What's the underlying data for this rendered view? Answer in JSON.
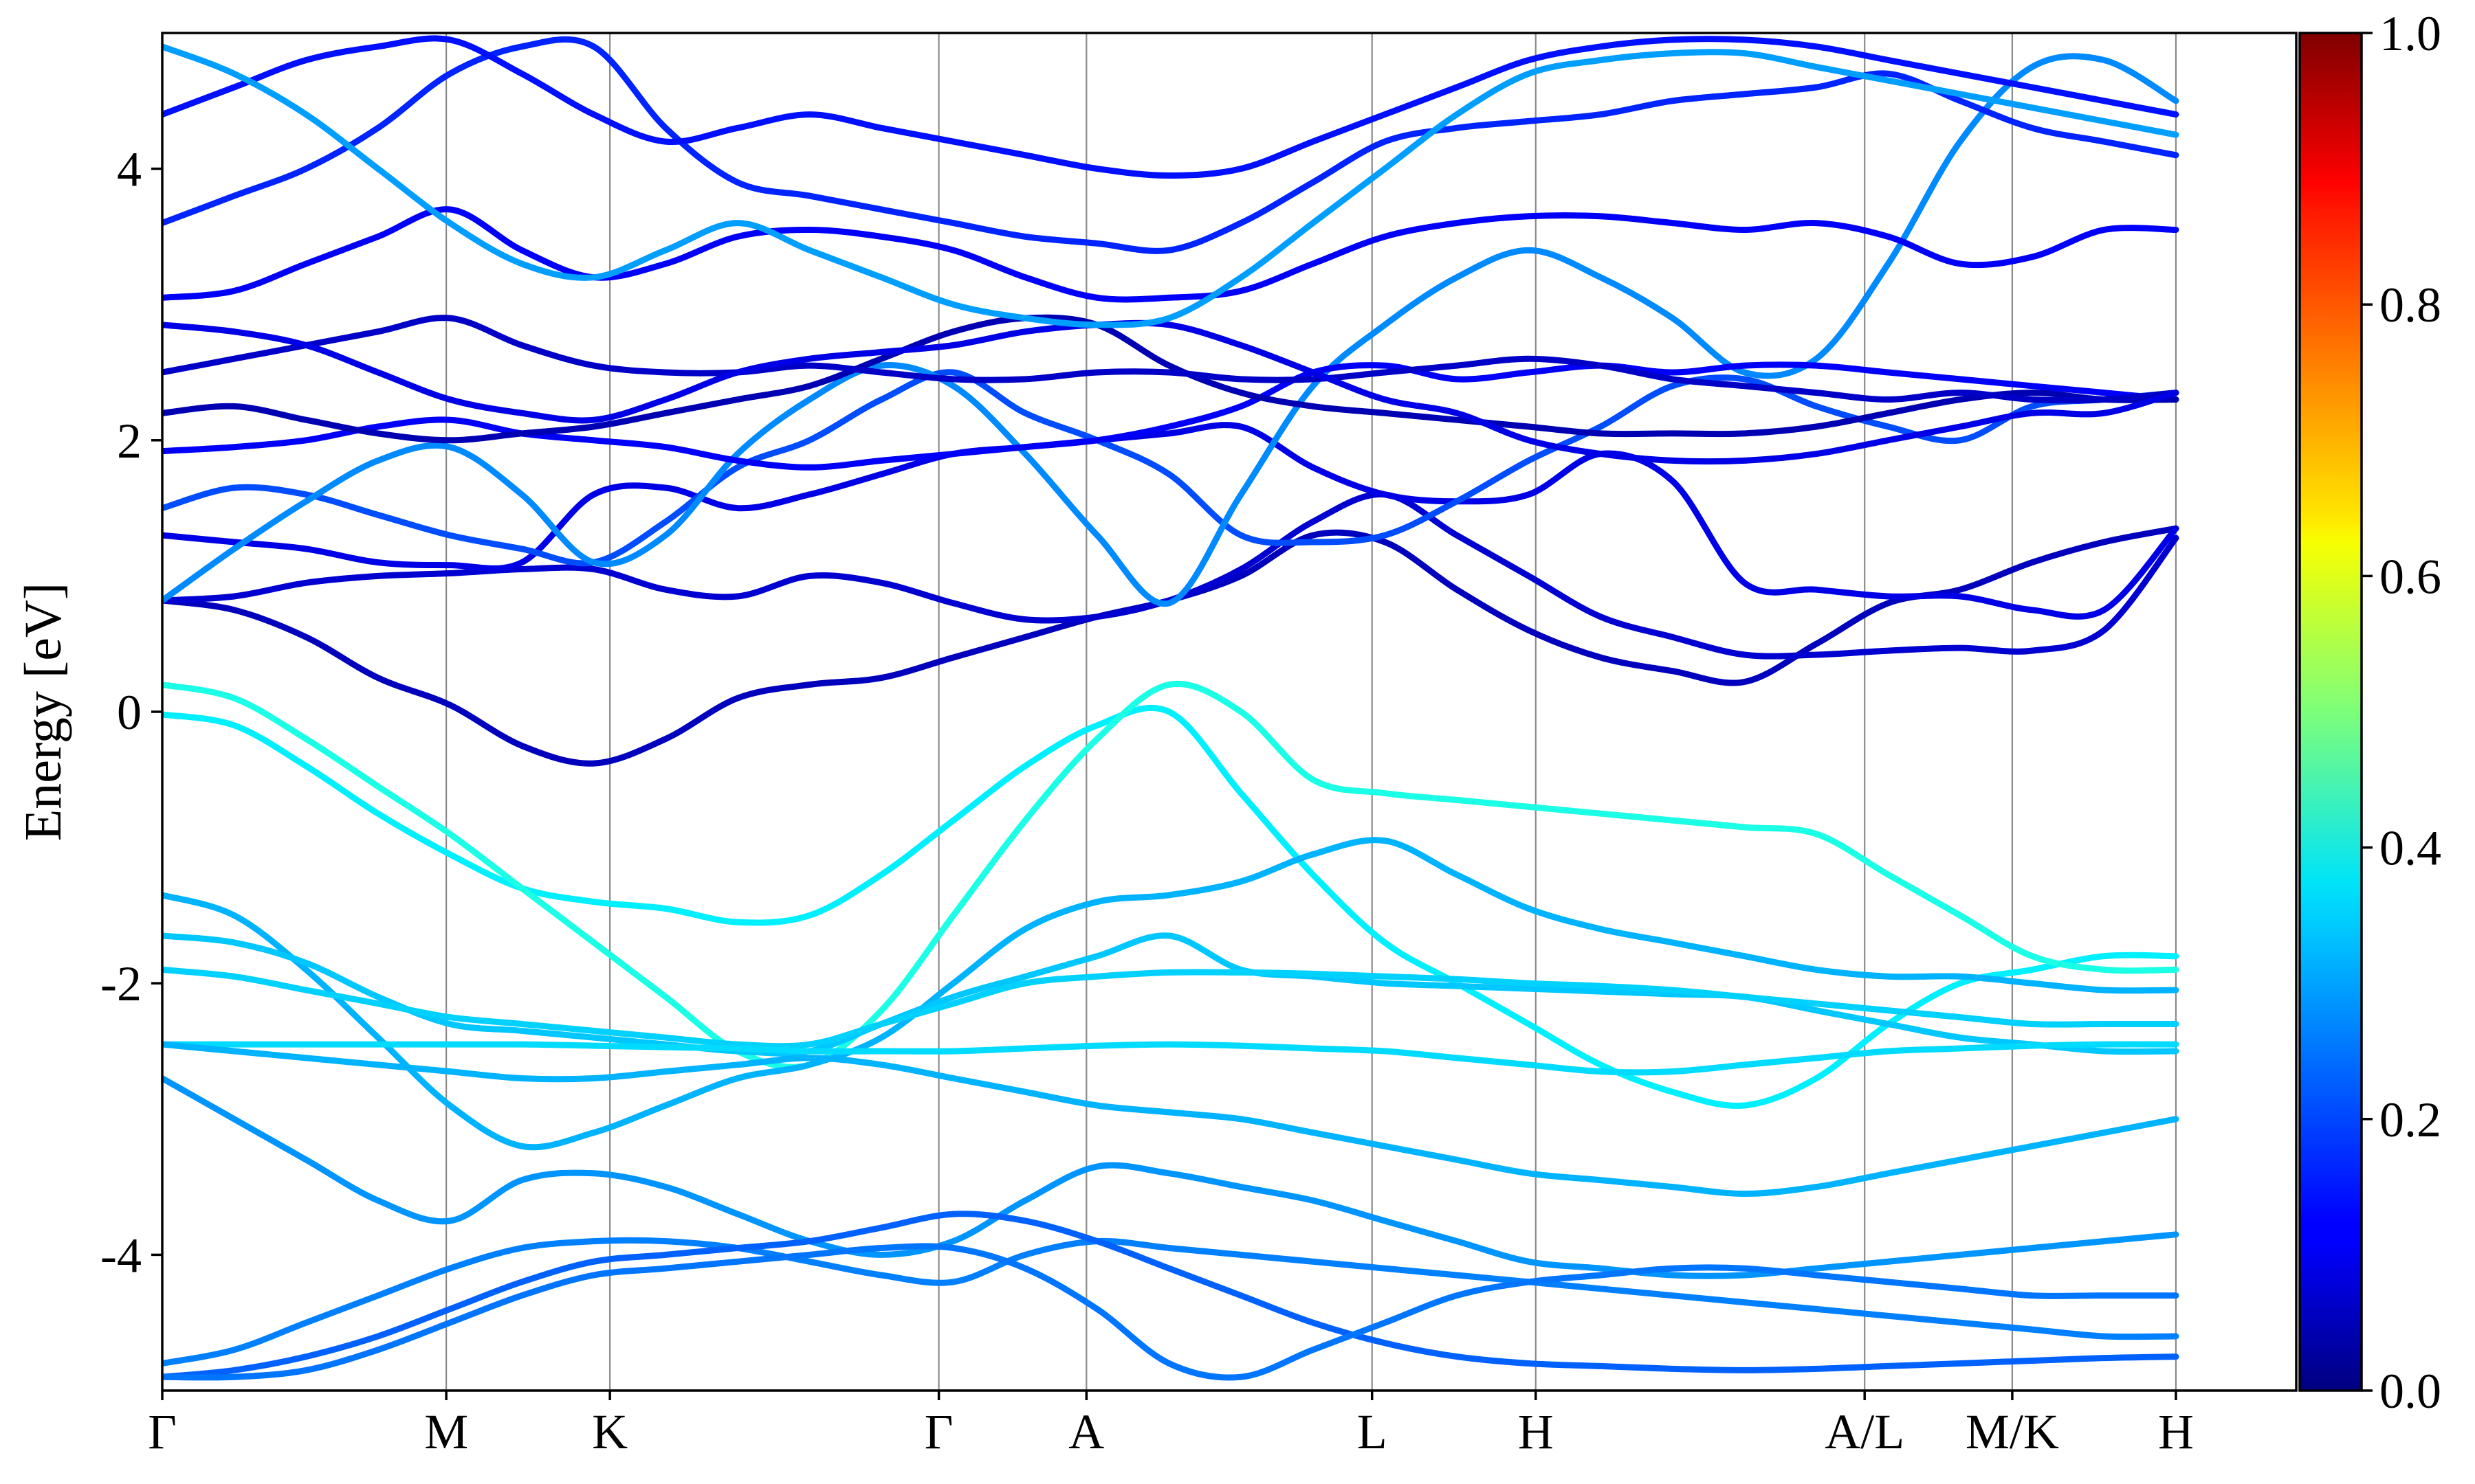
{
  "chart_data": {
    "type": "line",
    "title": "",
    "xlabel": "",
    "ylabel": "Energy [eV]",
    "ylim": [
      -5,
      5
    ],
    "y_ticks": [
      -4,
      -2,
      0,
      2,
      4
    ],
    "y_tick_labels": [
      "-4",
      "-2",
      "0",
      "2",
      "4"
    ],
    "grid": false,
    "legend": "none",
    "k_path": {
      "x_range": [
        0,
        13.3
      ],
      "points": [
        {
          "label": "Γ",
          "x": 0
        },
        {
          "label": "M",
          "x": 1.77
        },
        {
          "label": "K",
          "x": 2.79
        },
        {
          "label": "Γ",
          "x": 4.84
        },
        {
          "label": "A",
          "x": 5.76
        },
        {
          "label": "L",
          "x": 7.54
        },
        {
          "label": "H",
          "x": 8.56
        },
        {
          "label": "A/L",
          "x": 10.61
        },
        {
          "label": "M/K",
          "x": 11.53
        },
        {
          "label": "H",
          "x": 12.55
        }
      ]
    },
    "colorbar": {
      "colormap": "jet",
      "range": [
        0.0,
        1.0
      ],
      "ticks": [
        0.0,
        0.2,
        0.4,
        0.6,
        0.8,
        1.0
      ],
      "tick_labels": [
        "0.0",
        "0.2",
        "0.4",
        "0.6",
        "0.8",
        "1.0"
      ]
    },
    "series": [
      {
        "weight": 0.06,
        "values": [
          0.82,
          0.75,
          0.55,
          0.25,
          0.05,
          -0.25,
          -0.38,
          -0.2,
          0.1,
          0.2,
          0.25,
          0.4,
          0.55,
          0.7,
          0.82,
          1.0,
          1.3,
          1.25,
          0.9,
          0.6,
          0.4,
          0.3,
          0.22,
          0.5,
          0.8,
          0.9,
          1.1,
          1.25,
          1.35
        ]
      },
      {
        "weight": 0.08,
        "values": [
          0.82,
          0.85,
          0.95,
          1.0,
          1.02,
          1.05,
          1.05,
          0.9,
          0.85,
          1.0,
          0.95,
          0.8,
          0.68,
          0.7,
          0.82,
          1.05,
          1.4,
          1.6,
          1.3,
          1.0,
          0.7,
          0.55,
          0.42,
          0.42,
          0.45,
          0.47,
          0.45,
          0.6,
          1.28
        ]
      },
      {
        "weight": 0.1,
        "values": [
          1.3,
          1.25,
          1.2,
          1.1,
          1.08,
          1.1,
          1.6,
          1.65,
          1.5,
          1.6,
          1.75,
          1.9,
          1.95,
          2.0,
          2.05,
          2.1,
          1.8,
          1.6,
          1.55,
          1.6,
          1.9,
          1.7,
          0.95,
          0.9,
          0.85,
          0.85,
          0.75,
          0.75,
          1.35
        ]
      },
      {
        "weight": 0.2,
        "values": [
          1.5,
          1.65,
          1.6,
          1.45,
          1.3,
          1.2,
          1.1,
          1.4,
          1.8,
          2.0,
          2.3,
          2.5,
          2.2,
          2.0,
          1.75,
          1.3,
          1.25,
          1.3,
          1.55,
          1.85,
          2.1,
          2.4,
          2.45,
          2.25,
          2.1,
          2.0,
          2.25,
          2.3,
          2.35
        ]
      },
      {
        "weight": 0.26,
        "values": [
          0.82,
          1.2,
          1.55,
          1.85,
          1.95,
          1.6,
          1.1,
          1.3,
          1.9,
          2.3,
          2.55,
          2.4,
          1.9,
          1.3,
          0.8,
          1.6,
          2.4,
          2.85,
          3.2,
          3.4,
          3.2,
          2.9,
          2.5,
          2.6,
          3.3,
          4.2,
          4.75,
          4.8,
          4.5
        ]
      },
      {
        "weight": 0.12,
        "values": [
          1.92,
          1.95,
          2.0,
          2.1,
          2.15,
          2.05,
          2.0,
          1.95,
          1.85,
          1.8,
          1.85,
          1.9,
          1.95,
          2.0,
          2.1,
          2.25,
          2.5,
          2.55,
          2.45,
          2.5,
          2.55,
          2.5,
          2.55,
          2.55,
          2.5,
          2.45,
          2.4,
          2.35,
          2.3
        ]
      },
      {
        "weight": 0.05,
        "values": [
          2.2,
          2.25,
          2.15,
          2.05,
          2.0,
          2.05,
          2.1,
          2.2,
          2.3,
          2.4,
          2.6,
          2.8,
          2.9,
          2.85,
          2.55,
          2.35,
          2.25,
          2.2,
          2.15,
          2.1,
          2.05,
          2.05,
          2.05,
          2.1,
          2.2,
          2.3,
          2.35,
          2.3,
          2.3
        ]
      },
      {
        "weight": 0.07,
        "values": [
          2.5,
          2.6,
          2.7,
          2.8,
          2.9,
          2.7,
          2.55,
          2.5,
          2.5,
          2.55,
          2.5,
          2.45,
          2.45,
          2.5,
          2.5,
          2.45,
          2.45,
          2.5,
          2.55,
          2.6,
          2.55,
          2.45,
          2.4,
          2.35,
          2.3,
          2.35,
          2.3,
          2.3,
          2.35
        ]
      },
      {
        "weight": 0.1,
        "values": [
          2.85,
          2.8,
          2.7,
          2.5,
          2.3,
          2.2,
          2.15,
          2.3,
          2.5,
          2.6,
          2.65,
          2.7,
          2.8,
          2.85,
          2.85,
          2.7,
          2.5,
          2.3,
          2.2,
          2.0,
          1.9,
          1.85,
          1.85,
          1.9,
          2.0,
          2.1,
          2.2,
          2.2,
          2.35
        ]
      },
      {
        "weight": 0.12,
        "values": [
          3.05,
          3.1,
          3.3,
          3.5,
          3.7,
          3.4,
          3.2,
          3.3,
          3.5,
          3.55,
          3.5,
          3.4,
          3.2,
          3.05,
          3.05,
          3.1,
          3.3,
          3.5,
          3.6,
          3.65,
          3.65,
          3.6,
          3.55,
          3.6,
          3.5,
          3.3,
          3.35,
          3.55,
          3.55
        ]
      },
      {
        "weight": 0.16,
        "values": [
          3.6,
          3.8,
          4.0,
          4.3,
          4.7,
          4.9,
          4.9,
          4.3,
          3.9,
          3.8,
          3.7,
          3.6,
          3.5,
          3.45,
          3.4,
          3.6,
          3.9,
          4.2,
          4.3,
          4.35,
          4.4,
          4.5,
          4.55,
          4.6,
          4.7,
          4.5,
          4.3,
          4.2,
          4.1
        ]
      },
      {
        "weight": 0.14,
        "values": [
          4.4,
          4.6,
          4.8,
          4.9,
          4.95,
          4.7,
          4.4,
          4.2,
          4.3,
          4.4,
          4.3,
          4.2,
          4.1,
          4.0,
          3.95,
          4.0,
          4.2,
          4.4,
          4.6,
          4.8,
          4.9,
          4.95,
          4.95,
          4.9,
          4.8,
          4.7,
          4.6,
          4.5,
          4.4
        ]
      },
      {
        "weight": 0.28,
        "values": [
          4.9,
          4.7,
          4.4,
          4.0,
          3.6,
          3.3,
          3.2,
          3.4,
          3.6,
          3.4,
          3.2,
          3.0,
          2.9,
          2.85,
          2.9,
          3.2,
          3.6,
          4.0,
          4.4,
          4.7,
          4.8,
          4.85,
          4.85,
          4.75,
          4.65,
          4.55,
          4.45,
          4.35,
          4.25
        ]
      },
      {
        "weight": 0.36,
        "values": [
          -0.02,
          -0.1,
          -0.4,
          -0.75,
          -1.05,
          -1.3,
          -1.4,
          -1.45,
          -1.55,
          -1.5,
          -1.2,
          -0.8,
          -0.4,
          -0.1,
          0.0,
          -0.6,
          -1.2,
          -1.7,
          -2.0,
          -2.3,
          -2.6,
          -2.8,
          -2.9,
          -2.7,
          -2.3,
          -2.0,
          -1.9,
          -1.8,
          -1.8
        ]
      },
      {
        "weight": 0.4,
        "values": [
          0.2,
          0.1,
          -0.2,
          -0.55,
          -0.9,
          -1.3,
          -1.7,
          -2.1,
          -2.5,
          -2.6,
          -2.2,
          -1.5,
          -0.8,
          -0.2,
          0.2,
          0.0,
          -0.5,
          -0.6,
          -0.65,
          -0.7,
          -0.75,
          -0.8,
          -0.85,
          -0.9,
          -1.2,
          -1.5,
          -1.8,
          -1.9,
          -1.9
        ]
      },
      {
        "weight": 0.3,
        "values": [
          -1.35,
          -1.5,
          -1.9,
          -2.4,
          -2.9,
          -3.2,
          -3.1,
          -2.9,
          -2.7,
          -2.6,
          -2.4,
          -2.0,
          -1.6,
          -1.4,
          -1.35,
          -1.25,
          -1.05,
          -0.95,
          -1.2,
          -1.45,
          -1.6,
          -1.7,
          -1.8,
          -1.9,
          -1.95,
          -1.95,
          -2.0,
          -2.05,
          -2.05
        ]
      },
      {
        "weight": 0.32,
        "values": [
          -1.65,
          -1.7,
          -1.85,
          -2.1,
          -2.3,
          -2.35,
          -2.4,
          -2.45,
          -2.5,
          -2.5,
          -2.3,
          -2.1,
          -1.95,
          -1.8,
          -1.65,
          -1.9,
          -1.95,
          -2.0,
          -2.02,
          -2.04,
          -2.06,
          -2.08,
          -2.1,
          -2.2,
          -2.3,
          -2.4,
          -2.45,
          -2.5,
          -2.5
        ]
      },
      {
        "weight": 0.33,
        "values": [
          -1.9,
          -1.95,
          -2.05,
          -2.15,
          -2.25,
          -2.3,
          -2.35,
          -2.4,
          -2.45,
          -2.45,
          -2.3,
          -2.15,
          -2.0,
          -1.95,
          -1.92,
          -1.92,
          -1.93,
          -1.95,
          -1.97,
          -2.0,
          -2.02,
          -2.05,
          -2.1,
          -2.15,
          -2.2,
          -2.25,
          -2.3,
          -2.3,
          -2.3
        ]
      },
      {
        "weight": 0.34,
        "values": [
          -2.45,
          -2.45,
          -2.45,
          -2.45,
          -2.45,
          -2.45,
          -2.46,
          -2.47,
          -2.48,
          -2.5,
          -2.5,
          -2.5,
          -2.48,
          -2.46,
          -2.45,
          -2.46,
          -2.48,
          -2.5,
          -2.55,
          -2.6,
          -2.65,
          -2.65,
          -2.6,
          -2.55,
          -2.5,
          -2.48,
          -2.46,
          -2.45,
          -2.45
        ]
      },
      {
        "weight": 0.3,
        "values": [
          -2.45,
          -2.5,
          -2.55,
          -2.6,
          -2.65,
          -2.7,
          -2.7,
          -2.65,
          -2.6,
          -2.55,
          -2.6,
          -2.7,
          -2.8,
          -2.9,
          -2.95,
          -3.0,
          -3.1,
          -3.2,
          -3.3,
          -3.4,
          -3.45,
          -3.5,
          -3.55,
          -3.5,
          -3.4,
          -3.3,
          -3.2,
          -3.1,
          -3.0
        ]
      },
      {
        "weight": 0.27,
        "values": [
          -2.7,
          -3.0,
          -3.3,
          -3.6,
          -3.75,
          -3.45,
          -3.4,
          -3.5,
          -3.7,
          -3.9,
          -4.0,
          -3.9,
          -3.6,
          -3.35,
          -3.4,
          -3.5,
          -3.6,
          -3.75,
          -3.9,
          -4.05,
          -4.1,
          -4.15,
          -4.15,
          -4.1,
          -4.05,
          -4.0,
          -3.95,
          -3.9,
          -3.85
        ]
      },
      {
        "weight": 0.25,
        "values": [
          -4.8,
          -4.7,
          -4.5,
          -4.3,
          -4.1,
          -3.95,
          -3.9,
          -3.9,
          -3.95,
          -4.05,
          -4.15,
          -4.2,
          -4.0,
          -3.9,
          -3.95,
          -4.0,
          -4.05,
          -4.1,
          -4.15,
          -4.2,
          -4.25,
          -4.3,
          -4.35,
          -4.4,
          -4.45,
          -4.5,
          -4.55,
          -4.6,
          -4.6
        ]
      },
      {
        "weight": 0.22,
        "values": [
          -4.9,
          -4.85,
          -4.75,
          -4.6,
          -4.4,
          -4.2,
          -4.05,
          -4.0,
          -3.95,
          -3.9,
          -3.8,
          -3.7,
          -3.75,
          -3.9,
          -4.1,
          -4.3,
          -4.5,
          -4.65,
          -4.75,
          -4.8,
          -4.82,
          -4.84,
          -4.85,
          -4.84,
          -4.82,
          -4.8,
          -4.78,
          -4.76,
          -4.75
        ]
      },
      {
        "weight": 0.24,
        "values": [
          -4.9,
          -4.9,
          -4.85,
          -4.7,
          -4.5,
          -4.3,
          -4.15,
          -4.1,
          -4.05,
          -4.0,
          -3.95,
          -3.95,
          -4.1,
          -4.4,
          -4.8,
          -4.9,
          -4.7,
          -4.5,
          -4.3,
          -4.2,
          -4.15,
          -4.1,
          -4.1,
          -4.15,
          -4.2,
          -4.25,
          -4.3,
          -4.3,
          -4.3
        ]
      }
    ]
  }
}
